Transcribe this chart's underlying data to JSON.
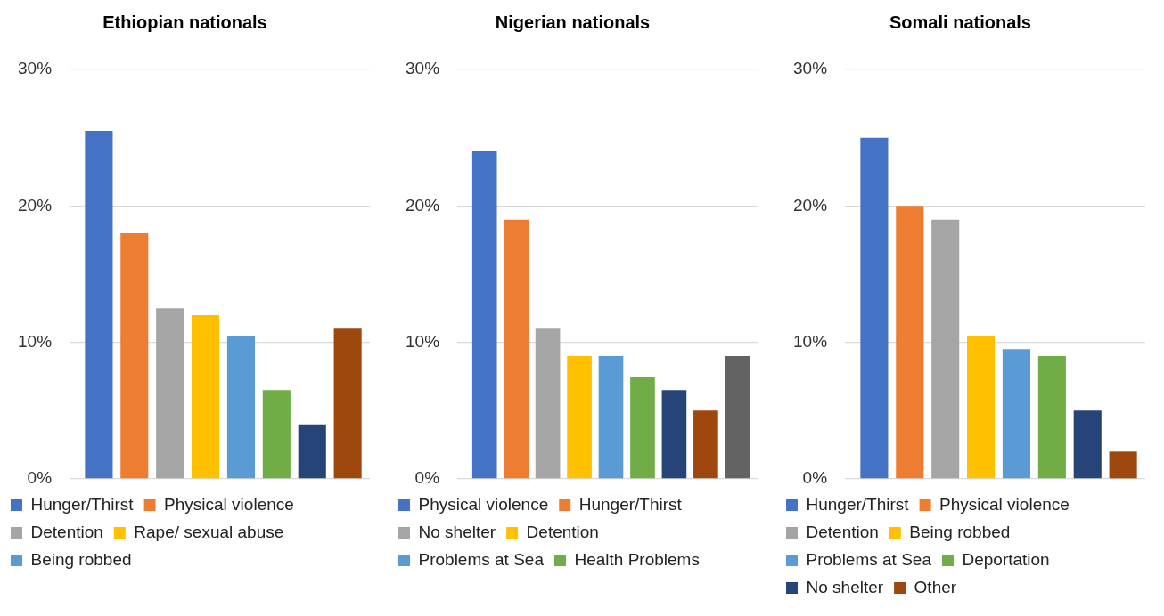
{
  "chart_data": [
    {
      "type": "bar",
      "title": "Ethiopian nationals",
      "categories": [
        null
      ],
      "series": [
        {
          "name": "Hunger/Thirst",
          "color": "#4472c4",
          "values": [
            25.5
          ]
        },
        {
          "name": "Physical violence",
          "color": "#ed7d31",
          "values": [
            18
          ]
        },
        {
          "name": "Detention",
          "color": "#a5a5a5",
          "values": [
            12.5
          ]
        },
        {
          "name": "Rape/ sexual abuse",
          "color": "#ffc000",
          "values": [
            12
          ]
        },
        {
          "name": "Being robbed",
          "color": "#5b9bd5",
          "values": [
            10.5
          ]
        },
        {
          "color": "#70ad47",
          "values": [
            6.5
          ]
        },
        {
          "color": "#264478",
          "values": [
            4
          ]
        },
        {
          "color": "#9e480e",
          "values": [
            11
          ]
        }
      ],
      "ylim": [
        0,
        30
      ],
      "yticks": [
        {
          "value": 0,
          "label": "0%"
        },
        {
          "value": 10,
          "label": "10%"
        },
        {
          "value": 20,
          "label": "20%"
        },
        {
          "value": 30,
          "label": "30%"
        }
      ],
      "grid": "y",
      "legend": "bottom",
      "tick_labels": "y"
    },
    {
      "type": "bar",
      "title": "Nigerian nationals",
      "categories": [
        null
      ],
      "series": [
        {
          "name": "Physical violence",
          "color": "#4472c4",
          "values": [
            24
          ]
        },
        {
          "name": "Hunger/Thirst",
          "color": "#ed7d31",
          "values": [
            19
          ]
        },
        {
          "name": "No shelter",
          "color": "#a5a5a5",
          "values": [
            11
          ]
        },
        {
          "name": "Detention",
          "color": "#ffc000",
          "values": [
            9
          ]
        },
        {
          "name": "Problems at Sea",
          "color": "#5b9bd5",
          "values": [
            9
          ]
        },
        {
          "name": "Health Problems",
          "color": "#70ad47",
          "values": [
            7.5
          ]
        },
        {
          "color": "#264478",
          "values": [
            6.5
          ]
        },
        {
          "color": "#9e480e",
          "values": [
            5
          ]
        },
        {
          "color": "#636363",
          "values": [
            9
          ]
        }
      ],
      "ylim": [
        0,
        30
      ],
      "yticks": [
        {
          "value": 0,
          "label": "0%"
        },
        {
          "value": 10,
          "label": "10%"
        },
        {
          "value": 20,
          "label": "20%"
        },
        {
          "value": 30,
          "label": "30%"
        }
      ],
      "grid": "y",
      "legend": "bottom",
      "tick_labels": "y"
    },
    {
      "type": "bar",
      "title": "Somali nationals",
      "categories": [
        null
      ],
      "series": [
        {
          "name": "Hunger/Thirst",
          "color": "#4472c4",
          "values": [
            25
          ]
        },
        {
          "name": "Physical violence",
          "color": "#ed7d31",
          "values": [
            20
          ]
        },
        {
          "name": "Detention",
          "color": "#a5a5a5",
          "values": [
            19
          ]
        },
        {
          "name": "Being robbed",
          "color": "#ffc000",
          "values": [
            10.5
          ]
        },
        {
          "name": "Problems at Sea",
          "color": "#5b9bd5",
          "values": [
            9.5
          ]
        },
        {
          "name": "Deportation",
          "color": "#70ad47",
          "values": [
            9
          ]
        },
        {
          "name": "No shelter",
          "color": "#264478",
          "values": [
            5
          ]
        },
        {
          "name": "Other",
          "color": "#9e480e",
          "values": [
            2
          ]
        }
      ],
      "ylim": [
        0,
        30
      ],
      "yticks": [
        {
          "value": 0,
          "label": "0%"
        },
        {
          "value": 10,
          "label": "10%"
        },
        {
          "value": 20,
          "label": "20%"
        },
        {
          "value": 30,
          "label": "30%"
        }
      ],
      "grid": "y",
      "legend": "bottom",
      "tick_labels": "y"
    }
  ]
}
